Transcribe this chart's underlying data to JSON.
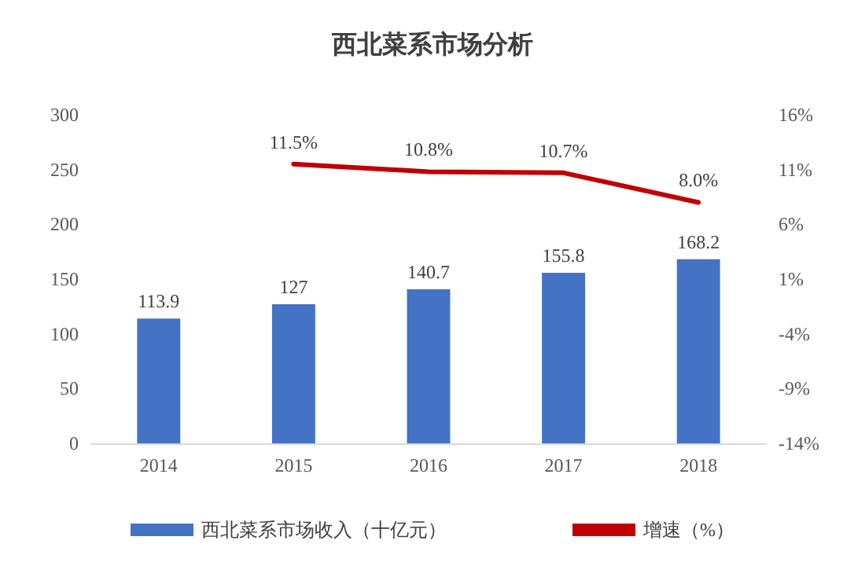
{
  "chart_data": {
    "type": "bar",
    "title": "西北菜系市场分析",
    "categories": [
      "2014",
      "2015",
      "2016",
      "2017",
      "2018"
    ],
    "series": [
      {
        "name": "西北菜系市场收入（十亿元）",
        "color": "#4472c4",
        "values": [
          113.9,
          127,
          140.7,
          155.8,
          168.2
        ],
        "value_labels": [
          "113.9",
          "127",
          "140.7",
          "155.8",
          "168.2"
        ]
      },
      {
        "name": "增速（%）",
        "type": "line",
        "axis": "y2",
        "color": "#c00000",
        "values": [
          null,
          11.5,
          10.8,
          10.7,
          8.0
        ],
        "value_labels": [
          null,
          "11.5%",
          "10.8%",
          "10.7%",
          "8.0%"
        ]
      }
    ],
    "ylim": [
      0,
      300
    ],
    "yticks": [
      0,
      50,
      100,
      150,
      200,
      250,
      300
    ],
    "y2lim": [
      -14,
      16
    ],
    "y2ticks": [
      {
        "value": -14,
        "label": "-14%"
      },
      {
        "value": -9,
        "label": "-9%"
      },
      {
        "value": -4,
        "label": "-4%"
      },
      {
        "value": 1,
        "label": "1%"
      },
      {
        "value": 6,
        "label": "6%"
      },
      {
        "value": 11,
        "label": "11%"
      },
      {
        "value": 16,
        "label": "16%"
      }
    ],
    "grid": false,
    "legend": "bottom",
    "marker": "none",
    "line_style": "solid"
  }
}
